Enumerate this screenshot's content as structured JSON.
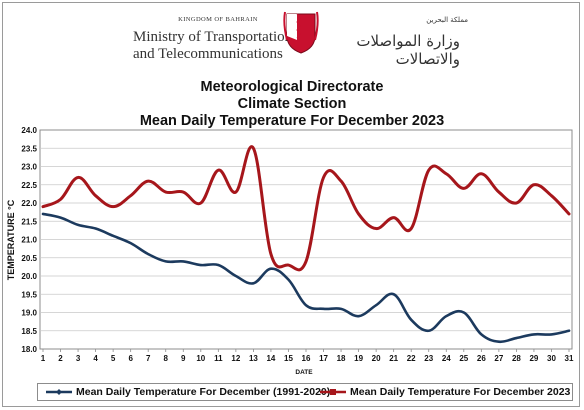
{
  "header": {
    "kingdom": "KINGDOM OF BAHRAIN",
    "ministry_line1": "Ministry of Transportation",
    "ministry_line2": "and Telecommunications",
    "arabic_kingdom": "مملكة البحرين",
    "arabic_ministry": "وزارة المواصلات والاتصالات",
    "emblem_icon": "bahrain-emblem-icon"
  },
  "colors": {
    "series_2023": "#a6161b",
    "series_1991_2020": "#1c3a5e",
    "emblem": "#c8102e"
  },
  "chart_data": {
    "type": "line",
    "title_line1": "Meteorological Directorate",
    "title_line2": "Climate Section",
    "title_line3": "Mean Daily Temperature For December 2023",
    "xlabel": "DATE",
    "ylabel": "TEMPERATURE °C",
    "x": [
      1,
      2,
      3,
      4,
      5,
      6,
      7,
      8,
      9,
      10,
      11,
      12,
      13,
      14,
      15,
      16,
      17,
      18,
      19,
      20,
      21,
      22,
      23,
      24,
      25,
      26,
      27,
      28,
      29,
      30,
      31
    ],
    "y_ticks": [
      "18.0",
      "18.5",
      "19.0",
      "19.5",
      "20.0",
      "20.5",
      "21.0",
      "21.5",
      "22.0",
      "22.5",
      "23.0",
      "23.5",
      "24.0"
    ],
    "ylim": [
      18.0,
      24.0
    ],
    "grid": true,
    "legend_position": "bottom",
    "series": [
      {
        "name": "Mean Daily Temperature For December (1991-2020)",
        "color": "#1c3a5e",
        "values": [
          21.7,
          21.6,
          21.4,
          21.3,
          21.1,
          20.9,
          20.6,
          20.4,
          20.4,
          20.3,
          20.3,
          20.0,
          19.8,
          20.2,
          19.9,
          19.2,
          19.1,
          19.1,
          18.9,
          19.2,
          19.5,
          18.8,
          18.5,
          18.9,
          19.0,
          18.4,
          18.2,
          18.3,
          18.4,
          18.4,
          18.5
        ]
      },
      {
        "name": "Mean Daily Temperature For December 2023",
        "color": "#a6161b",
        "values": [
          21.9,
          22.1,
          22.7,
          22.2,
          21.9,
          22.2,
          22.6,
          22.3,
          22.3,
          22.0,
          22.9,
          22.3,
          23.5,
          20.6,
          20.3,
          20.4,
          22.7,
          22.6,
          21.7,
          21.3,
          21.6,
          21.3,
          22.9,
          22.8,
          22.4,
          22.8,
          22.3,
          22.0,
          22.5,
          22.2,
          21.7
        ]
      }
    ]
  }
}
